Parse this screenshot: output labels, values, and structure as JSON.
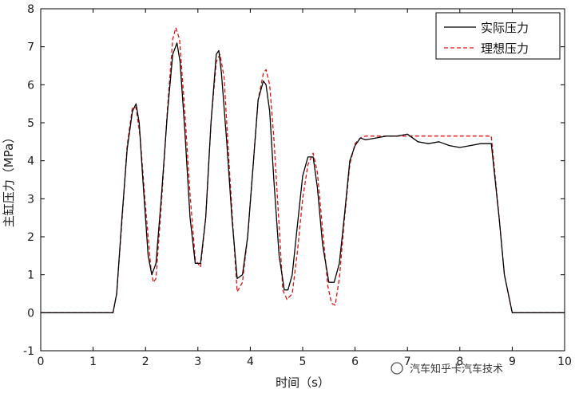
{
  "chart_data": {
    "type": "line",
    "xlabel": "时间（s）",
    "ylabel": "主缸压力（MPa）",
    "xlim": [
      0,
      10
    ],
    "ylim": [
      -1,
      8
    ],
    "x_ticks": [
      "0",
      "1",
      "2",
      "3",
      "4",
      "5",
      "6",
      "7",
      "8",
      "9",
      "10"
    ],
    "y_ticks": [
      "-1",
      "0",
      "1",
      "2",
      "3",
      "4",
      "5",
      "6",
      "7",
      "8"
    ],
    "grid": false,
    "legend": "top-right",
    "series": [
      {
        "name": "实际压力",
        "color": "#000000",
        "style": "solid",
        "x": [
          0,
          1.38,
          1.45,
          1.55,
          1.65,
          1.75,
          1.82,
          1.88,
          1.95,
          2.05,
          2.12,
          2.2,
          2.3,
          2.42,
          2.52,
          2.6,
          2.66,
          2.75,
          2.85,
          2.95,
          3.05,
          3.15,
          3.25,
          3.35,
          3.4,
          3.45,
          3.55,
          3.65,
          3.75,
          3.85,
          3.95,
          4.05,
          4.15,
          4.25,
          4.3,
          4.37,
          4.45,
          4.55,
          4.65,
          4.72,
          4.8,
          4.9,
          5.0,
          5.1,
          5.2,
          5.28,
          5.38,
          5.5,
          5.6,
          5.7,
          5.8,
          5.9,
          6.0,
          6.1,
          6.2,
          6.4,
          6.6,
          6.8,
          7.0,
          7.2,
          7.4,
          7.6,
          7.8,
          8.0,
          8.2,
          8.4,
          8.6,
          8.75,
          8.85,
          9.0,
          9.5,
          10.0
        ],
        "y": [
          0,
          0,
          0.5,
          2.5,
          4.3,
          5.3,
          5.5,
          5.0,
          3.5,
          1.5,
          1.0,
          1.3,
          3.0,
          5.3,
          6.8,
          7.1,
          6.6,
          4.8,
          2.5,
          1.3,
          1.3,
          2.5,
          5.0,
          6.8,
          6.9,
          6.3,
          4.5,
          2.5,
          0.9,
          1.0,
          2.0,
          3.8,
          5.6,
          6.1,
          6.0,
          5.3,
          3.5,
          1.5,
          0.6,
          0.6,
          1.0,
          2.3,
          3.6,
          4.1,
          4.1,
          3.3,
          1.8,
          0.8,
          0.8,
          1.3,
          2.6,
          4.0,
          4.4,
          4.6,
          4.55,
          4.6,
          4.65,
          4.65,
          4.7,
          4.5,
          4.45,
          4.5,
          4.4,
          4.35,
          4.4,
          4.45,
          4.45,
          2.5,
          1.0,
          0,
          0,
          0
        ]
      },
      {
        "name": "理想压力",
        "color": "#e01010",
        "style": "dashed",
        "x": [
          0,
          1.38,
          1.45,
          1.55,
          1.65,
          1.75,
          1.82,
          1.9,
          2.0,
          2.1,
          2.15,
          2.2,
          2.3,
          2.42,
          2.52,
          2.58,
          2.65,
          2.75,
          2.85,
          2.95,
          3.05,
          3.15,
          3.25,
          3.35,
          3.42,
          3.5,
          3.6,
          3.7,
          3.75,
          3.85,
          3.95,
          4.05,
          4.15,
          4.25,
          4.3,
          4.37,
          4.45,
          4.55,
          4.62,
          4.7,
          4.8,
          4.9,
          5.0,
          5.1,
          5.2,
          5.28,
          5.38,
          5.48,
          5.55,
          5.62,
          5.7,
          5.8,
          5.9,
          6.0,
          6.1,
          6.2,
          8.6,
          8.75,
          8.85,
          9.0,
          9.5,
          10.0
        ],
        "y": [
          0,
          0,
          0.5,
          2.4,
          4.4,
          5.4,
          5.4,
          4.6,
          2.8,
          1.2,
          0.8,
          0.9,
          2.8,
          5.4,
          7.2,
          7.5,
          7.2,
          5.3,
          3.1,
          1.4,
          1.2,
          2.5,
          5.0,
          6.6,
          6.8,
          6.2,
          3.8,
          1.6,
          0.55,
          0.8,
          2.0,
          3.8,
          5.6,
          6.3,
          6.4,
          6.0,
          4.6,
          2.3,
          0.6,
          0.35,
          0.5,
          1.6,
          3.0,
          3.9,
          4.2,
          3.7,
          2.2,
          0.7,
          0.25,
          0.2,
          0.9,
          2.5,
          3.9,
          4.45,
          4.6,
          4.65,
          4.65,
          2.5,
          1.0,
          0,
          0,
          0
        ]
      }
    ]
  },
  "watermark": "汽车知乎卡汽车技术"
}
